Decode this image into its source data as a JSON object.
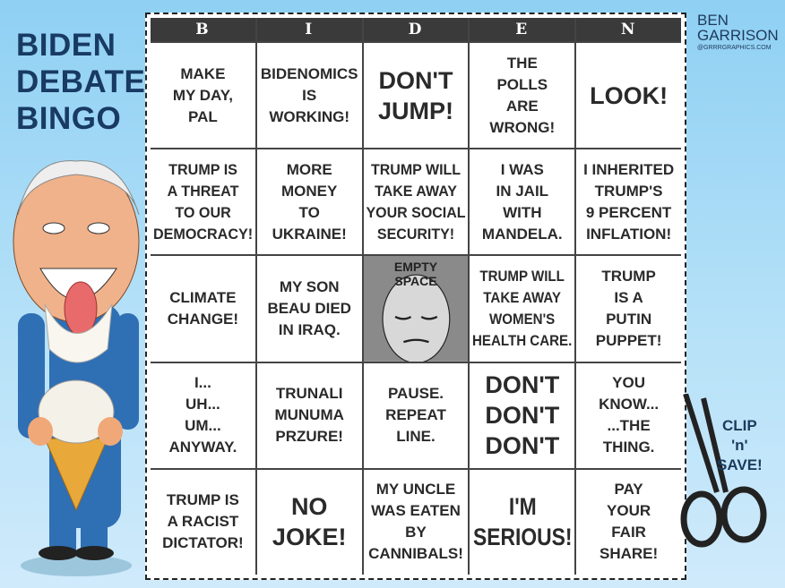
{
  "title": [
    "BIDEN",
    "DEBATE",
    "BINGO"
  ],
  "credit": {
    "name1": "BEN",
    "name2": "GARRISON",
    "website": "@GRRRGRAPHICS.COM"
  },
  "clip": "CLIP\n'n'\nSAVE!",
  "headers": [
    "B",
    "I",
    "D",
    "E",
    "N"
  ],
  "cells": [
    "MAKE\nMY DAY,\nPAL",
    "BIDENOMICS\nIS\nWORKING!",
    "DON'T\nJUMP!",
    "THE\nPOLLS\nARE\nWRONG!",
    "LOOK!",
    "TRUMP IS\nA THREAT\nTO OUR\nDEMOCRACY!",
    "MORE\nMONEY\nTO\nUKRAINE!",
    "TRUMP WILL\nTAKE AWAY\nYOUR SOCIAL\nSECURITY!",
    "I WAS\nIN JAIL\nWITH\nMANDELA.",
    "I INHERITED\nTRUMP'S\n9 PERCENT\nINFLATION!",
    "CLIMATE\nCHANGE!",
    "MY SON\nBEAU DIED\nIN IRAQ.",
    "EMPTY\nSPACE",
    "TRUMP WILL\nTAKE AWAY\nWOMEN'S\nHEALTH CARE.",
    "TRUMP\nIS A\nPUTIN\nPUPPET!",
    "I...\nUH...\nUM...\nANYWAY.",
    "TRUNALI\nMUNUMA\nPRZURE!",
    "PAUSE.\nREPEAT\nLINE.",
    "DON'T\nDON'T\nDON'T",
    "YOU\nKNOW...\n...THE\nTHING.",
    "TRUMP IS\nA RACIST\nDICTATOR!",
    "NO\nJOKE!",
    "MY UNCLE\nWAS EATEN\nBY\nCANNIBALS!",
    "I'M\nSERIOUS!",
    "PAY\nYOUR\nFAIR\nSHARE!"
  ],
  "big_cells": [
    2,
    4,
    18,
    21,
    23
  ]
}
